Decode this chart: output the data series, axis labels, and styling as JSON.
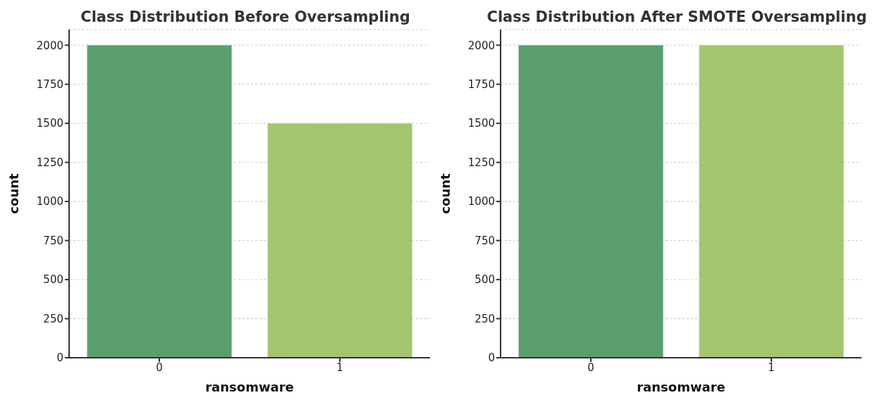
{
  "chart_data": [
    {
      "type": "bar",
      "title": "Class Distribution Before Oversampling",
      "xlabel": "ransomware",
      "ylabel": "count",
      "categories": [
        "0",
        "1"
      ],
      "values": [
        2000,
        1500
      ],
      "colors": [
        "#5b9e6d",
        "#a4c670"
      ],
      "ylim": [
        0,
        2100
      ],
      "yticks": [
        0,
        250,
        500,
        750,
        1000,
        1250,
        1500,
        1750,
        2000
      ],
      "grid": "y"
    },
    {
      "type": "bar",
      "title": "Class Distribution After SMOTE Oversampling",
      "xlabel": "ransomware",
      "ylabel": "count",
      "categories": [
        "0",
        "1"
      ],
      "values": [
        2000,
        2000
      ],
      "colors": [
        "#5b9e6d",
        "#a4c670"
      ],
      "ylim": [
        0,
        2100
      ],
      "yticks": [
        0,
        250,
        500,
        750,
        1000,
        1250,
        1500,
        1750,
        2000
      ],
      "grid": "y"
    }
  ]
}
